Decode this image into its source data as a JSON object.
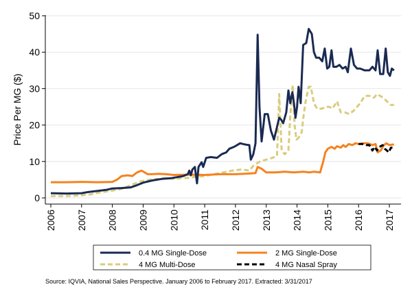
{
  "chart_data": {
    "type": "line",
    "ylabel": "Price Per MG ($)",
    "xlabel": "",
    "xlim": [
      2006,
      2017.2
    ],
    "ylim": [
      0,
      50
    ],
    "y_ticks": [
      0,
      10,
      20,
      30,
      40,
      50
    ],
    "x_ticks": [
      2006,
      2007,
      2008,
      2009,
      2010,
      2011,
      2012,
      2013,
      2014,
      2015,
      2016,
      2017
    ],
    "x_tick_labels": [
      "2006",
      "2007",
      "2008",
      "2009",
      "2010",
      "2011",
      "2012",
      "2013",
      "2014",
      "2015",
      "2016",
      "2017"
    ],
    "y_tick_labels": [
      "0",
      "10",
      "20",
      "30",
      "40",
      "50"
    ],
    "grid": "horizontal",
    "legend_position": "bottom",
    "source": "Source: IQVIA, National Sales Perspective. January 2006 to February 2017. Extracted: 3/31/2017",
    "series": [
      {
        "name": "0.4 MG Single-Dose",
        "color": "#1a2a52",
        "style": "solid",
        "points": [
          [
            2006.0,
            1.3
          ],
          [
            2006.5,
            1.2
          ],
          [
            2007.0,
            1.3
          ],
          [
            2007.2,
            1.6
          ],
          [
            2007.5,
            1.9
          ],
          [
            2007.8,
            2.2
          ],
          [
            2008.0,
            2.6
          ],
          [
            2008.3,
            2.7
          ],
          [
            2008.6,
            2.9
          ],
          [
            2008.8,
            3.5
          ],
          [
            2009.0,
            4.2
          ],
          [
            2009.3,
            4.8
          ],
          [
            2009.6,
            5.2
          ],
          [
            2009.9,
            5.4
          ],
          [
            2010.1,
            5.7
          ],
          [
            2010.3,
            6.0
          ],
          [
            2010.45,
            6.5
          ],
          [
            2010.5,
            7.5
          ],
          [
            2010.55,
            6.2
          ],
          [
            2010.6,
            7.8
          ],
          [
            2010.68,
            8.5
          ],
          [
            2010.75,
            4.0
          ],
          [
            2010.8,
            8.5
          ],
          [
            2010.9,
            9.8
          ],
          [
            2010.95,
            8.5
          ],
          [
            2011.05,
            11.0
          ],
          [
            2011.2,
            11.2
          ],
          [
            2011.4,
            11.0
          ],
          [
            2011.55,
            12.0
          ],
          [
            2011.7,
            12.5
          ],
          [
            2011.8,
            13.5
          ],
          [
            2011.95,
            14.0
          ],
          [
            2012.05,
            14.5
          ],
          [
            2012.15,
            15.0
          ],
          [
            2012.25,
            14.8
          ],
          [
            2012.35,
            14.6
          ],
          [
            2012.45,
            14.5
          ],
          [
            2012.5,
            10.5
          ],
          [
            2012.58,
            12.0
          ],
          [
            2012.65,
            15.0
          ],
          [
            2012.72,
            44.8
          ],
          [
            2012.78,
            25.0
          ],
          [
            2012.85,
            15.5
          ],
          [
            2012.95,
            23.0
          ],
          [
            2013.05,
            23.0
          ],
          [
            2013.15,
            18.5
          ],
          [
            2013.25,
            16.0
          ],
          [
            2013.35,
            19.5
          ],
          [
            2013.42,
            22.0
          ],
          [
            2013.48,
            21.5
          ],
          [
            2013.55,
            20.5
          ],
          [
            2013.65,
            23.5
          ],
          [
            2013.72,
            29.5
          ],
          [
            2013.78,
            26.0
          ],
          [
            2013.85,
            29.0
          ],
          [
            2013.9,
            26.0
          ],
          [
            2013.95,
            22.0
          ],
          [
            2014.0,
            25.0
          ],
          [
            2014.05,
            30.5
          ],
          [
            2014.12,
            26.0
          ],
          [
            2014.2,
            42.0
          ],
          [
            2014.3,
            42.5
          ],
          [
            2014.38,
            46.4
          ],
          [
            2014.48,
            45.0
          ],
          [
            2014.55,
            40.0
          ],
          [
            2014.62,
            38.5
          ],
          [
            2014.72,
            38.5
          ],
          [
            2014.82,
            37.5
          ],
          [
            2014.9,
            41.0
          ],
          [
            2014.98,
            35.5
          ],
          [
            2015.05,
            36.0
          ],
          [
            2015.12,
            40.5
          ],
          [
            2015.18,
            36.0
          ],
          [
            2015.28,
            36.0
          ],
          [
            2015.38,
            36.5
          ],
          [
            2015.48,
            35.5
          ],
          [
            2015.58,
            36.0
          ],
          [
            2015.65,
            34.5
          ],
          [
            2015.75,
            41.0
          ],
          [
            2015.85,
            36.5
          ],
          [
            2015.95,
            35.5
          ],
          [
            2016.05,
            35.5
          ],
          [
            2016.2,
            35.0
          ],
          [
            2016.35,
            35.0
          ],
          [
            2016.45,
            36.0
          ],
          [
            2016.55,
            35.0
          ],
          [
            2016.62,
            40.5
          ],
          [
            2016.7,
            34.0
          ],
          [
            2016.8,
            34.0
          ],
          [
            2016.88,
            41.0
          ],
          [
            2016.95,
            34.5
          ],
          [
            2017.02,
            33.5
          ],
          [
            2017.08,
            35.5
          ],
          [
            2017.15,
            35.0
          ]
        ]
      },
      {
        "name": "2 MG Single-Dose",
        "color": "#f5821f",
        "style": "solid",
        "points": [
          [
            2006.0,
            4.3
          ],
          [
            2006.5,
            4.3
          ],
          [
            2007.0,
            4.4
          ],
          [
            2007.5,
            4.3
          ],
          [
            2008.0,
            4.4
          ],
          [
            2008.15,
            5.0
          ],
          [
            2008.3,
            6.0
          ],
          [
            2008.5,
            6.2
          ],
          [
            2008.65,
            6.0
          ],
          [
            2008.8,
            7.0
          ],
          [
            2008.95,
            7.5
          ],
          [
            2009.05,
            7.0
          ],
          [
            2009.15,
            6.5
          ],
          [
            2009.25,
            6.5
          ],
          [
            2009.5,
            6.6
          ],
          [
            2009.75,
            6.5
          ],
          [
            2010.0,
            6.3
          ],
          [
            2010.5,
            6.4
          ],
          [
            2011.0,
            6.3
          ],
          [
            2011.5,
            6.5
          ],
          [
            2012.0,
            6.5
          ],
          [
            2012.45,
            6.7
          ],
          [
            2012.65,
            6.8
          ],
          [
            2012.72,
            8.5
          ],
          [
            2012.85,
            8.0
          ],
          [
            2013.0,
            7.0
          ],
          [
            2013.3,
            7.0
          ],
          [
            2013.6,
            7.2
          ],
          [
            2013.9,
            7.0
          ],
          [
            2014.2,
            7.2
          ],
          [
            2014.4,
            7.0
          ],
          [
            2014.55,
            7.2
          ],
          [
            2014.75,
            7.0
          ],
          [
            2014.85,
            10.0
          ],
          [
            2014.92,
            12.5
          ],
          [
            2015.0,
            13.5
          ],
          [
            2015.12,
            14.0
          ],
          [
            2015.22,
            13.5
          ],
          [
            2015.3,
            14.2
          ],
          [
            2015.42,
            13.8
          ],
          [
            2015.5,
            14.5
          ],
          [
            2015.58,
            14.0
          ],
          [
            2015.68,
            14.8
          ],
          [
            2015.8,
            14.5
          ],
          [
            2015.9,
            15.0
          ],
          [
            2016.0,
            14.8
          ],
          [
            2016.15,
            15.0
          ],
          [
            2016.3,
            15.0
          ],
          [
            2016.45,
            14.5
          ],
          [
            2016.55,
            14.8
          ],
          [
            2016.62,
            12.5
          ],
          [
            2016.72,
            13.0
          ],
          [
            2016.82,
            14.5
          ],
          [
            2016.9,
            15.0
          ],
          [
            2017.0,
            14.5
          ],
          [
            2017.15,
            14.7
          ]
        ]
      },
      {
        "name": "4 MG Multi-Dose",
        "color": "#d8cc7e",
        "style": "dashed",
        "points": [
          [
            2006.0,
            0.5
          ],
          [
            2006.5,
            0.5
          ],
          [
            2007.0,
            0.7
          ],
          [
            2007.3,
            1.0
          ],
          [
            2007.6,
            1.5
          ],
          [
            2008.0,
            2.0
          ],
          [
            2008.3,
            2.5
          ],
          [
            2008.6,
            3.5
          ],
          [
            2008.9,
            4.5
          ],
          [
            2009.2,
            5.0
          ],
          [
            2009.5,
            5.2
          ],
          [
            2009.8,
            5.5
          ],
          [
            2010.0,
            5.2
          ],
          [
            2010.2,
            5.4
          ],
          [
            2010.5,
            5.5
          ],
          [
            2010.7,
            5.8
          ],
          [
            2011.0,
            6.0
          ],
          [
            2011.3,
            6.5
          ],
          [
            2011.6,
            7.0
          ],
          [
            2011.9,
            7.5
          ],
          [
            2012.2,
            7.8
          ],
          [
            2012.45,
            7.5
          ],
          [
            2012.6,
            9.0
          ],
          [
            2012.8,
            10.0
          ],
          [
            2013.0,
            10.5
          ],
          [
            2013.2,
            11.0
          ],
          [
            2013.35,
            11.5
          ],
          [
            2013.42,
            28.5
          ],
          [
            2013.5,
            13.0
          ],
          [
            2013.6,
            12.0
          ],
          [
            2013.72,
            13.0
          ],
          [
            2013.78,
            22.5
          ],
          [
            2013.86,
            31.0
          ],
          [
            2013.92,
            20.0
          ],
          [
            2013.98,
            16.0
          ],
          [
            2014.05,
            16.5
          ],
          [
            2014.15,
            18.0
          ],
          [
            2014.22,
            23.0
          ],
          [
            2014.28,
            26.5
          ],
          [
            2014.38,
            30.5
          ],
          [
            2014.45,
            30.5
          ],
          [
            2014.55,
            26.0
          ],
          [
            2014.65,
            24.5
          ],
          [
            2014.8,
            24.5
          ],
          [
            2014.95,
            25.0
          ],
          [
            2015.05,
            25.0
          ],
          [
            2015.15,
            24.5
          ],
          [
            2015.3,
            26.5
          ],
          [
            2015.42,
            23.5
          ],
          [
            2015.55,
            23.5
          ],
          [
            2015.7,
            23.0
          ],
          [
            2015.85,
            24.0
          ],
          [
            2015.95,
            25.0
          ],
          [
            2016.05,
            26.0
          ],
          [
            2016.2,
            28.0
          ],
          [
            2016.35,
            28.0
          ],
          [
            2016.5,
            27.5
          ],
          [
            2016.6,
            28.5
          ],
          [
            2016.7,
            28.0
          ],
          [
            2016.8,
            27.5
          ],
          [
            2016.92,
            26.5
          ],
          [
            2017.05,
            25.5
          ],
          [
            2017.15,
            25.5
          ]
        ]
      },
      {
        "name": "4 MG Nasal Spray",
        "color": "#000000",
        "style": "dashed",
        "points": [
          [
            2016.0,
            14.8
          ],
          [
            2016.12,
            14.8
          ],
          [
            2016.25,
            14.5
          ],
          [
            2016.35,
            14.5
          ],
          [
            2016.45,
            13.0
          ],
          [
            2016.52,
            14.0
          ],
          [
            2016.6,
            13.0
          ],
          [
            2016.68,
            14.0
          ],
          [
            2016.78,
            14.5
          ],
          [
            2016.85,
            13.5
          ],
          [
            2016.92,
            13.0
          ],
          [
            2016.98,
            12.5
          ],
          [
            2017.05,
            13.8
          ],
          [
            2017.15,
            13.8
          ]
        ]
      }
    ]
  }
}
